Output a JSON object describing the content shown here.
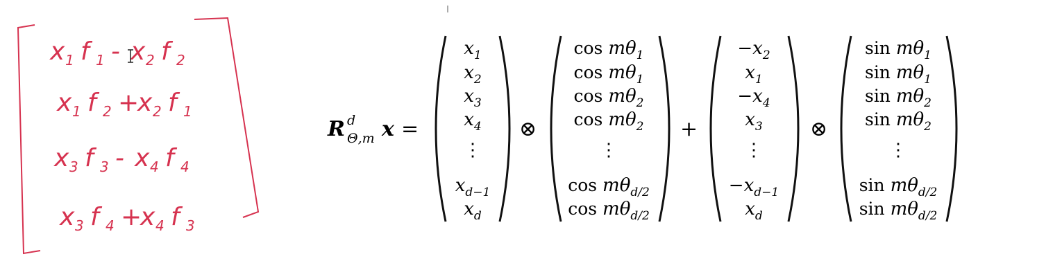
{
  "handwritten": {
    "rows": [
      [
        {
          "t": "x",
          "s": "1"
        },
        {
          "t": "f",
          "s": "1"
        },
        {
          "t": "-"
        },
        {
          "t": "x",
          "s": "2"
        },
        {
          "t": "f",
          "s": "2"
        }
      ],
      [
        {
          "t": "x",
          "s": "1"
        },
        {
          "t": "f",
          "s": "2"
        },
        {
          "t": "+"
        },
        {
          "t": "x",
          "s": "2"
        },
        {
          "t": "f",
          "s": "1"
        }
      ],
      [
        {
          "t": "x",
          "s": "3"
        },
        {
          "t": "f",
          "s": "3"
        },
        {
          "t": "-"
        },
        {
          "t": "x",
          "s": "4"
        },
        {
          "t": "f",
          "s": "4"
        }
      ],
      [
        {
          "t": "x",
          "s": "3"
        },
        {
          "t": "f",
          "s": "4"
        },
        {
          "t": "+"
        },
        {
          "t": "x",
          "s": "4"
        },
        {
          "t": "f",
          "s": "3"
        }
      ]
    ],
    "ink_color": "#d6324f"
  },
  "formula": {
    "lhs": {
      "symbol": "R",
      "superscript": "d",
      "subscript": "Θ,m",
      "vector": "x",
      "equals": "="
    },
    "op_hadamard": "⊗",
    "op_plus": "+",
    "vec_x": [
      {
        "b": "x",
        "s": "1"
      },
      {
        "b": "x",
        "s": "2"
      },
      {
        "b": "x",
        "s": "3"
      },
      {
        "b": "x",
        "s": "4"
      },
      {
        "dots": "⋮"
      },
      {
        "b": "x",
        "s": "d−1"
      },
      {
        "b": "x",
        "s": "d"
      }
    ],
    "vec_cos": [
      {
        "fn": "cos",
        "b": "mθ",
        "s": "1"
      },
      {
        "fn": "cos",
        "b": "mθ",
        "s": "1"
      },
      {
        "fn": "cos",
        "b": "mθ",
        "s": "2"
      },
      {
        "fn": "cos",
        "b": "mθ",
        "s": "2"
      },
      {
        "dots": "⋮"
      },
      {
        "fn": "cos",
        "b": "mθ",
        "s": "d/2"
      },
      {
        "fn": "cos",
        "b": "mθ",
        "s": "d/2"
      }
    ],
    "vec_xrot": [
      {
        "b": "−x",
        "s": "2"
      },
      {
        "b": "x",
        "s": "1"
      },
      {
        "b": "−x",
        "s": "4"
      },
      {
        "b": "x",
        "s": "3"
      },
      {
        "dots": "⋮"
      },
      {
        "b": "−x",
        "s": "d−1"
      },
      {
        "b": "x",
        "s": "d"
      }
    ],
    "vec_sin": [
      {
        "fn": "sin",
        "b": "mθ",
        "s": "1"
      },
      {
        "fn": "sin",
        "b": "mθ",
        "s": "1"
      },
      {
        "fn": "sin",
        "b": "mθ",
        "s": "2"
      },
      {
        "fn": "sin",
        "b": "mθ",
        "s": "2"
      },
      {
        "dots": "⋮"
      },
      {
        "fn": "sin",
        "b": "mθ",
        "s": "d/2"
      },
      {
        "fn": "sin",
        "b": "mθ",
        "s": "d/2"
      }
    ]
  }
}
